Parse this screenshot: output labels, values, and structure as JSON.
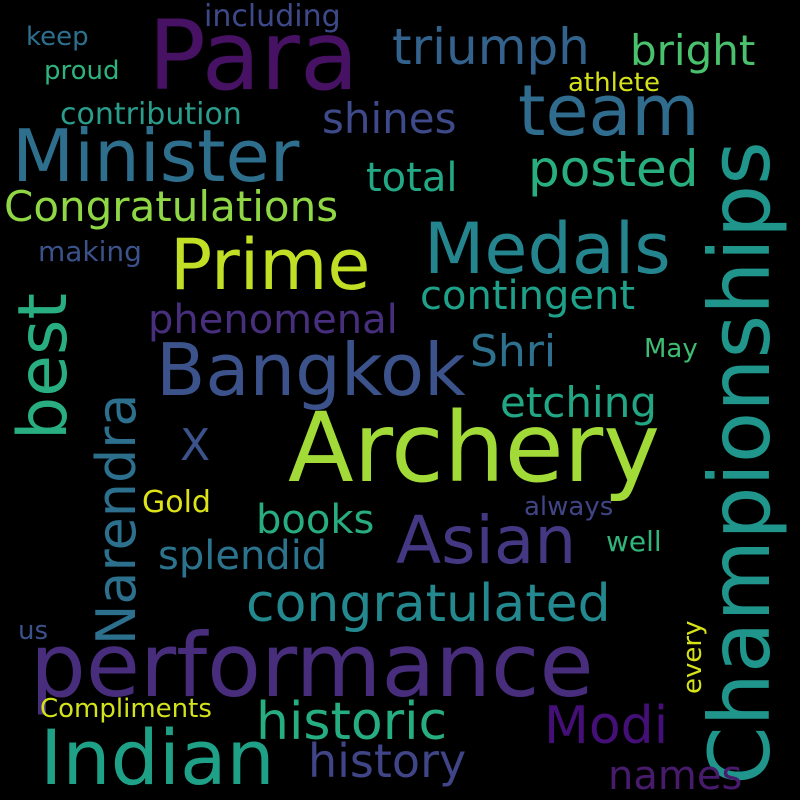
{
  "background": "#000000",
  "words": [
    {
      "text": "Archery",
      "color": "#a2da37"
    },
    {
      "text": "Para",
      "color": "#471164"
    },
    {
      "text": "Championships",
      "color": "#1f958b"
    },
    {
      "text": "performance",
      "color": "#472d7b"
    },
    {
      "text": "Indian",
      "color": "#1fa187"
    },
    {
      "text": "Minister",
      "color": "#2e6f8e"
    },
    {
      "text": "Bangkok",
      "color": "#3b528b"
    },
    {
      "text": "Medals",
      "color": "#25858e"
    },
    {
      "text": "team",
      "color": "#2f6c8e"
    },
    {
      "text": "Prime",
      "color": "#c0df25"
    },
    {
      "text": "Asian",
      "color": "#453882"
    },
    {
      "text": "best",
      "color": "#28ae80"
    },
    {
      "text": "Narendra",
      "color": "#2d708e"
    },
    {
      "text": "congratulated",
      "color": "#23898e"
    },
    {
      "text": "Modi",
      "color": "#440f76"
    },
    {
      "text": "historic",
      "color": "#26ad81"
    },
    {
      "text": "triumph",
      "color": "#33638d"
    },
    {
      "text": "posted",
      "color": "#29af7f"
    },
    {
      "text": "Congratulations",
      "color": "#8fd744"
    },
    {
      "text": "history",
      "color": "#404588"
    },
    {
      "text": "names",
      "color": "#481b6d"
    },
    {
      "text": "bright",
      "color": "#4ac16d"
    },
    {
      "text": "shines",
      "color": "#3e4a89"
    },
    {
      "text": "total",
      "color": "#22a884"
    },
    {
      "text": "contingent",
      "color": "#1fa088"
    },
    {
      "text": "phenomenal",
      "color": "#472f7d"
    },
    {
      "text": "Shri",
      "color": "#2d718e"
    },
    {
      "text": "etching",
      "color": "#22a785"
    },
    {
      "text": "X",
      "color": "#3b528b"
    },
    {
      "text": "books",
      "color": "#27ad81"
    },
    {
      "text": "splendid",
      "color": "#2c738e"
    },
    {
      "text": "including",
      "color": "#3e4989"
    },
    {
      "text": "keep",
      "color": "#2d708e"
    },
    {
      "text": "proud",
      "color": "#2eb37c"
    },
    {
      "text": "contribution",
      "color": "#2a9d8c"
    },
    {
      "text": "athlete",
      "color": "#d5e21a"
    },
    {
      "text": "making",
      "color": "#3b528b"
    },
    {
      "text": "May",
      "color": "#3fbc73"
    },
    {
      "text": "Gold",
      "color": "#dde318"
    },
    {
      "text": "always",
      "color": "#414487"
    },
    {
      "text": "well",
      "color": "#31b57b"
    },
    {
      "text": "us",
      "color": "#3b528b"
    },
    {
      "text": "every",
      "color": "#d8e219"
    },
    {
      "text": "Compliments",
      "color": "#d2e21b"
    }
  ]
}
